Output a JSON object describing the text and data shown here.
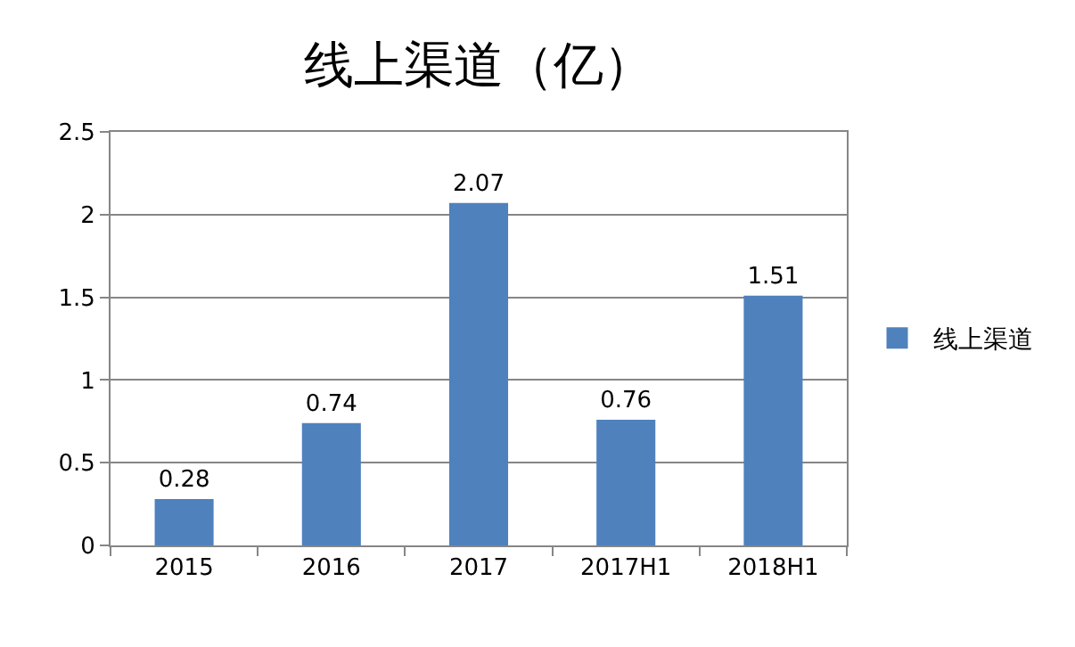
{
  "chart_data": {
    "type": "bar",
    "title": "线上渠道（亿）",
    "categories": [
      "2015",
      "2016",
      "2017",
      "2017H1",
      "2018H1"
    ],
    "series": [
      {
        "name": "线上渠道",
        "color": "#4f81bd",
        "values": [
          0.28,
          0.74,
          2.07,
          0.76,
          1.51
        ]
      }
    ],
    "ylim": [
      0,
      2.5
    ],
    "yticks": [
      0,
      0.5,
      1,
      1.5,
      2,
      2.5
    ],
    "grid": "y",
    "legend": "right",
    "data_labels": true
  }
}
